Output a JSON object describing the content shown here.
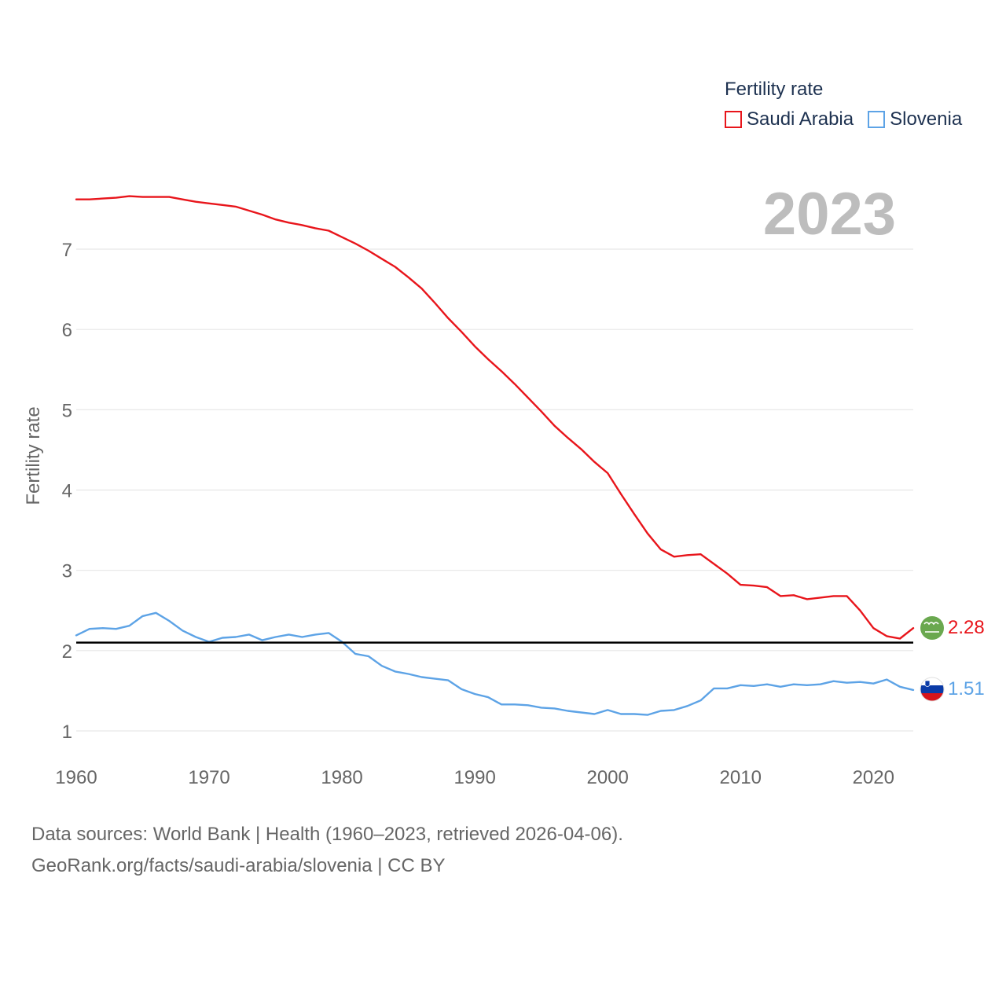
{
  "chart_data": {
    "type": "line",
    "title": "Fertility rate",
    "legend_title": "Fertility rate",
    "ylabel": "Fertility rate",
    "xlabel": "",
    "xlim": [
      1960,
      2023
    ],
    "ylim": [
      0.7,
      7.95
    ],
    "x_ticks": [
      1960,
      1970,
      1980,
      1990,
      2000,
      2010,
      2020
    ],
    "y_ticks": [
      1,
      2,
      3,
      4,
      5,
      6,
      7
    ],
    "year_display": "2023",
    "reference_line": {
      "value": 2.1,
      "color": "#000000"
    },
    "x": [
      1960,
      1961,
      1962,
      1963,
      1964,
      1965,
      1966,
      1967,
      1968,
      1969,
      1970,
      1971,
      1972,
      1973,
      1974,
      1975,
      1976,
      1977,
      1978,
      1979,
      1980,
      1981,
      1982,
      1983,
      1984,
      1985,
      1986,
      1987,
      1988,
      1989,
      1990,
      1991,
      1992,
      1993,
      1994,
      1995,
      1996,
      1997,
      1998,
      1999,
      2000,
      2001,
      2002,
      2003,
      2004,
      2005,
      2006,
      2007,
      2008,
      2009,
      2010,
      2011,
      2012,
      2013,
      2014,
      2015,
      2016,
      2017,
      2018,
      2019,
      2020,
      2021,
      2022,
      2023
    ],
    "series": [
      {
        "name": "Saudi Arabia",
        "color": "#e8151b",
        "flag_icon": "saudi-arabia-flag-icon",
        "end_label": "2.28",
        "values": [
          7.62,
          7.62,
          7.63,
          7.64,
          7.66,
          7.65,
          7.65,
          7.65,
          7.62,
          7.59,
          7.57,
          7.55,
          7.53,
          7.48,
          7.43,
          7.37,
          7.33,
          7.3,
          7.26,
          7.23,
          7.15,
          7.07,
          6.98,
          6.88,
          6.78,
          6.65,
          6.51,
          6.33,
          6.14,
          5.97,
          5.79,
          5.63,
          5.48,
          5.32,
          5.15,
          4.98,
          4.8,
          4.65,
          4.51,
          4.35,
          4.21,
          3.95,
          3.7,
          3.46,
          3.26,
          3.17,
          3.19,
          3.2,
          3.08,
          2.96,
          2.82,
          2.81,
          2.79,
          2.68,
          2.69,
          2.64,
          2.66,
          2.68,
          2.68,
          2.5,
          2.28,
          2.18,
          2.15,
          2.28
        ]
      },
      {
        "name": "Slovenia",
        "color": "#5da3e6",
        "flag_icon": "slovenia-flag-icon",
        "end_label": "1.51",
        "values": [
          2.19,
          2.27,
          2.28,
          2.27,
          2.31,
          2.43,
          2.47,
          2.37,
          2.25,
          2.17,
          2.11,
          2.16,
          2.17,
          2.2,
          2.13,
          2.17,
          2.2,
          2.17,
          2.2,
          2.22,
          2.11,
          1.96,
          1.93,
          1.81,
          1.74,
          1.71,
          1.67,
          1.65,
          1.63,
          1.52,
          1.46,
          1.42,
          1.33,
          1.33,
          1.32,
          1.29,
          1.28,
          1.25,
          1.23,
          1.21,
          1.26,
          1.21,
          1.21,
          1.2,
          1.25,
          1.26,
          1.31,
          1.38,
          1.53,
          1.53,
          1.57,
          1.56,
          1.58,
          1.55,
          1.58,
          1.57,
          1.58,
          1.62,
          1.6,
          1.61,
          1.59,
          1.64,
          1.55,
          1.51
        ]
      }
    ]
  },
  "footer": {
    "line1": "Data sources: World Bank | Health (1960–2023, retrieved 2026-04-06).",
    "line2": "GeoRank.org/facts/saudi-arabia/slovenia | CC BY"
  }
}
